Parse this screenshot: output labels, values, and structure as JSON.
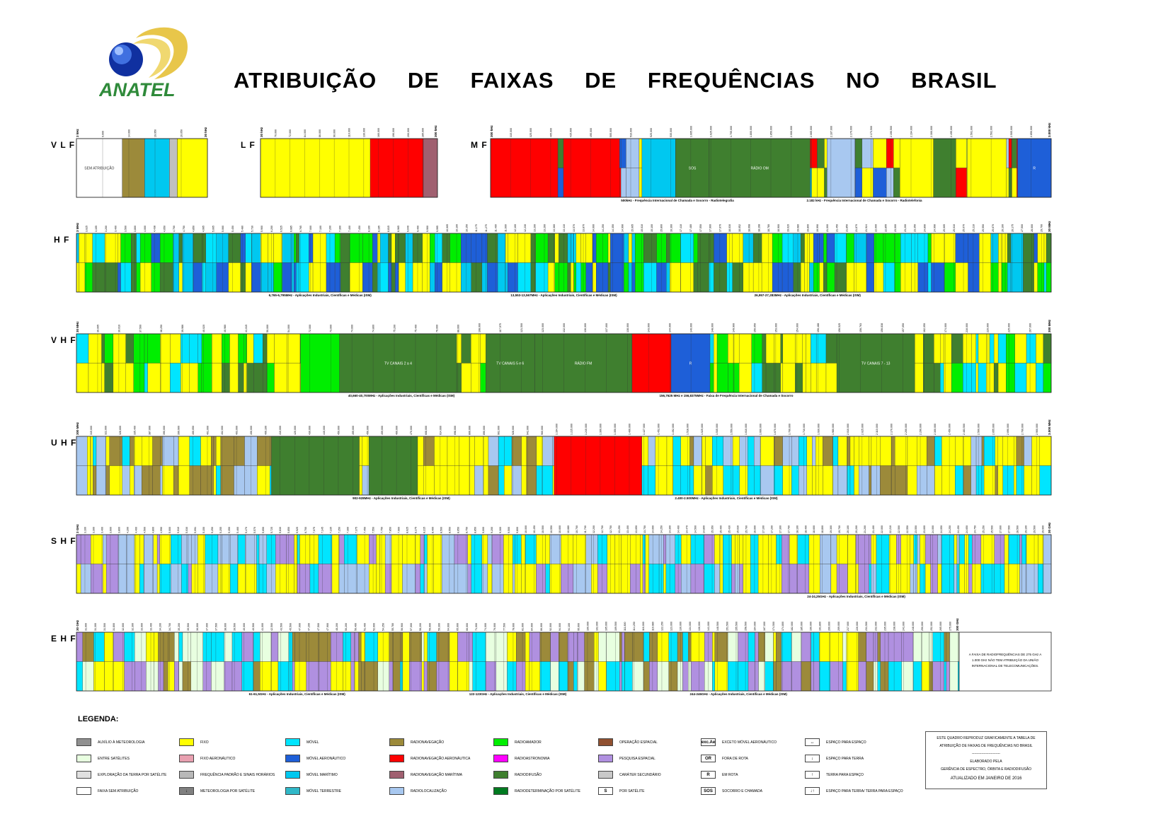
{
  "header": {
    "title": "ATRIBUIÇÃO DE FAIXAS DE FREQUÊNCIAS NO BRASIL",
    "logo_text": "ANATEL"
  },
  "colors": {
    "fixo": "#FFFF00",
    "movel": "#00E5FF",
    "movel_aeronautico": "#1E5FD8",
    "movel_maritimo": "#00C8F0",
    "radiodifusao": "#3F7F2F",
    "radiolocalizacao": "#A8C8F0",
    "radionavegacao": "#9C8A3A",
    "radionavegacao_aeronautica": "#FF0000",
    "radioamador": "#00EE00",
    "radioastronomia": "#FF00FF",
    "pesquisa_espacial": "#B090E0",
    "entre_satelites": "#E8FFE0",
    "fixo_aeronautico": "#E8A0B0",
    "radionav_maritima": "#A06070",
    "operacao_espacial": "#905030",
    "aux_meteorologia": "#909090",
    "caracter_secundario": "#C0C0C0",
    "terra_pale": "#FFFF99"
  },
  "chart_data": {
    "type": "frequency-allocation-chart",
    "bands": [
      {
        "name": "V L F",
        "start_label": "3 kHz",
        "end_label": "30 kHz",
        "tick_labels": [
          "9,000",
          "14,000",
          "19,950",
          "20,050"
        ],
        "notes": [],
        "block_labels": [
          "SEM ATRIBUIÇÃO"
        ]
      },
      {
        "name": "L F",
        "start_label": "30 kHz",
        "end_label": "300 kHz",
        "tick_labels": [
          "70,000",
          "72,000",
          "84,000",
          "86,000",
          "90,000",
          "110,000",
          "130,000",
          "160,000",
          "190,000",
          "200,000",
          "285,000"
        ],
        "notes": [],
        "block_labels": [
          "Radio Baci"
        ]
      },
      {
        "name": "M F",
        "start_label": "300 kHz",
        "end_label": "3.000 kHz",
        "tick_labels": [
          "315,000",
          "325,000",
          "405,000",
          "415,000",
          "495,000",
          "505,000",
          "510,000",
          "525,000",
          "535,000",
          "1.605,000",
          "1.625,000",
          "1.705,000",
          "1.800,000",
          "1.850,000",
          "2.000,000",
          "2.065,000",
          "2.107,000",
          "2.170,000",
          "2.173,500",
          "2.190,500",
          "2.194,000",
          "2.300,000",
          "2.495,000",
          "2.501,000",
          "2.502,000",
          "2.505,000",
          "2.850,000"
        ],
        "notes": [
          "500kHz - Frequência Internacional de Chamada e Socorro - Radiotelegrafia",
          "2.182 kHz - Frequência Internacional de Chamada e Socorro - Radiotelefonia"
        ],
        "block_labels": [
          "Radiolocal",
          "SOS",
          "RÁDIO OM",
          "exc. Ae",
          "R",
          "SOS"
        ]
      },
      {
        "name": "H F",
        "start_label": "3 MHz",
        "end_label": "30 MHz",
        "tick_labels": [
          "3,025",
          "3,155",
          "3,200",
          "3,400",
          "3,500",
          "3,800",
          "4,000",
          "4,438",
          "4,650",
          "4,700",
          "4,750",
          "4,850",
          "4,995",
          "5,005",
          "5,060",
          "5,450",
          "5,480",
          "5,730",
          "5,900",
          "6,200",
          "6,525",
          "6,685",
          "6,765",
          "7,000",
          "7,100",
          "7,200",
          "7,300",
          "7,400",
          "7,450",
          "8,100",
          "8,195",
          "8,815",
          "8,965",
          "9,040",
          "9,400",
          "9,900",
          "9,995",
          "10,005",
          "10,100",
          "10,150",
          "11,175",
          "11,275",
          "11,400",
          "11,600",
          "12,100",
          "12,230",
          "13,200",
          "13,260",
          "13,360",
          "13,410",
          "13,570",
          "13,870",
          "14,000",
          "14,250",
          "14,350",
          "14,990",
          "15,005",
          "15,010",
          "15,100",
          "15,800",
          "16,360",
          "17,410",
          "17,480",
          "17,550",
          "17,900",
          "17,970",
          "18,030",
          "18,052",
          "18,068",
          "18,168",
          "18,780",
          "18,900",
          "19,020",
          "19,680",
          "19,800",
          "19,990",
          "21,000",
          "21,450",
          "21,850",
          "21,870",
          "21,924",
          "22,000",
          "22,855",
          "23,000",
          "23,200",
          "23,350",
          "24,890",
          "24,990",
          "25,005",
          "25,010",
          "25,070",
          "25,210",
          "25,550",
          "25,670",
          "26,100",
          "26,175",
          "27,500",
          "28,000",
          "29,700"
        ],
        "notes": [
          "6,765-6,795MHz - Aplicações Industriais, Científicas e Médicas (ISM)",
          "13,553-13,567MHz - Aplicações Industriais, Científicas e Médicas (ISM)",
          "26,957-27,283MHz - Aplicações Industriais, Científicas e Médicas (ISM)"
        ],
        "block_labels": [
          "R",
          "OR",
          "exc.Ae R",
          "R",
          "exc.Ae. R",
          "exc.Ae R",
          "R",
          "OR",
          "R",
          "OR",
          "R",
          "OR",
          "exc.Ae",
          "exc.Ae",
          "exc.Ae",
          "R",
          "OR",
          "exc.Ae",
          "R",
          "OR",
          "Exc.Ae",
          "Exc.Ae",
          "R",
          "OR"
        ]
      },
      {
        "name": "V H F",
        "start_label": "30 MHz",
        "end_label": "300 MHz",
        "tick_labels": [
          "30,005",
          "30,010",
          "37,500",
          "38,250",
          "39,986",
          "40,020",
          "40,980",
          "41,015",
          "50,000",
          "54,000",
          "72,000",
          "73,000",
          "74,600",
          "74,800",
          "75,200",
          "75,400",
          "76,000",
          "88,000",
          "108,000",
          "117,975",
          "121,500",
          "123,000",
          "132,000",
          "136,000",
          "137,000",
          "138,000",
          "143,600",
          "144,000",
          "146,000",
          "148,000",
          "149,900",
          "150,050",
          "153,000",
          "154,000",
          "156,488",
          "156,525",
          "156,763",
          "156,838",
          "157,050",
          "162,050",
          "174,000",
          "216,000",
          "220,000",
          "225,000",
          "267,000"
        ],
        "notes": [
          "40,660-40,700MHz - Aplicações Industriais, Científicas e Médicas (ISM)",
          "156,7625 MHz e 156,8375MHz - Faixa de Frequência Internacional de Chamada e Socorro"
        ],
        "block_labels": [
          "TV CANAIS 2 a 4",
          "TV CANAIS 5 e 6",
          "RÁDIO FM",
          "R",
          "TV CANAIS 7 - 13"
        ]
      },
      {
        "name": "U H F",
        "start_label": "300 MHz",
        "end_label": "3.000 MHz",
        "tick_labels": [
          "315,000",
          "322,000",
          "328,600",
          "335,400",
          "387,000",
          "390,000",
          "399,900",
          "400,050",
          "401,000",
          "402,000",
          "403,000",
          "406,000",
          "406,100",
          "410,000",
          "420,000",
          "430,000",
          "440,000",
          "450,000",
          "455,000",
          "456,000",
          "459,000",
          "460,000",
          "470,000",
          "608,000",
          "614,000",
          "698,000",
          "806,000",
          "890,000",
          "902,000",
          "928,000",
          "942,000",
          "960,000",
          "1.164,000",
          "1.215,000",
          "1.240,000",
          "1.300,000",
          "1.350,000",
          "1.400,000",
          "1.427,000",
          "1.452,000",
          "1.492,000",
          "1.518,000",
          "1.525,000",
          "1.535,000",
          "1.559,000",
          "1.610,000",
          "1.660,000",
          "1.670,000",
          "1.700,000",
          "1.710,000",
          "1.930,000",
          "1.980,000",
          "2.010,000",
          "2.025,000",
          "2.110,000",
          "2.170,000",
          "2.200,000",
          "2.290,000",
          "2.300,000",
          "2.450,000",
          "2.483,500",
          "2.500,000",
          "2.655,000",
          "2.690,000",
          "2.700,000",
          "2.900,000"
        ],
        "notes": [
          "902-928MHz - Aplicações Industriais, Científicas e Médicas (ISM)",
          "2.400-2.500MHz - Aplicações Industriais, Científicas e Médicas (ISM)"
        ],
        "block_labels": [
          "TV CANAIS 14 a 36",
          "TV CANAIS 38 a 51"
        ]
      },
      {
        "name": "S H F",
        "start_label": "3 GHz",
        "end_label": "30 GHz",
        "tick_labels": [
          "3,100",
          "3,300",
          "3,400",
          "3,600",
          "3,800",
          "4,200",
          "4,400",
          "4,500",
          "4,800",
          "4,990",
          "5,000",
          "5,010",
          "5,030",
          "5,091",
          "5,150",
          "5,250",
          "5,255",
          "5,350",
          "5,460",
          "5,470",
          "5,570",
          "5,650",
          "5,725",
          "5,830",
          "5,850",
          "5,925",
          "6,700",
          "7,075",
          "7,145",
          "7,235",
          "7,250",
          "7,300",
          "7,375",
          "7,450",
          "7,550",
          "7,750",
          "7,850",
          "7,900",
          "8,025",
          "8,175",
          "8,215",
          "8,400",
          "8,500",
          "8,550",
          "8,650",
          "8,750",
          "8,850",
          "9,000",
          "9,200",
          "9,300",
          "9,500",
          "9,800",
          "10,000",
          "10,450",
          "10,500",
          "10,550",
          "10,600",
          "10,680",
          "10,700",
          "11,700",
          "12,200",
          "12,700",
          "12,750",
          "13,250",
          "13,400",
          "13,650",
          "13,750",
          "14,000",
          "14,250",
          "14,300",
          "14,400",
          "14,470",
          "14,500",
          "14,800",
          "15,350",
          "15,400",
          "15,430",
          "15,630",
          "15,700",
          "16,600",
          "17,100",
          "17,200",
          "17,300",
          "17,700",
          "18,100",
          "18,400",
          "18,600",
          "18,800",
          "19,300",
          "19,700",
          "20,100",
          "20,200",
          "21,200",
          "21,400",
          "22,000",
          "22,210",
          "22,500",
          "22,550",
          "23,550",
          "23,600",
          "24,000",
          "24,050",
          "24,250",
          "24,450",
          "24,650",
          "24,750",
          "25,250",
          "25,500",
          "27,000",
          "27,500",
          "28,500",
          "29,100",
          "29,500",
          "29,900"
        ],
        "notes": [
          "24-24,25GHz - Aplicações Industriais, Científicas e Médicas (ISM)"
        ],
        "block_labels": []
      },
      {
        "name": "E H F",
        "start_label": "30 GHz",
        "end_label": "300 GHz",
        "tick_labels": [
          "31,000",
          "31,300",
          "31,500",
          "31,800",
          "32,000",
          "32,300",
          "33,000",
          "33,400",
          "34,200",
          "34,700",
          "35,200",
          "35,500",
          "36,000",
          "37,000",
          "37,500",
          "38,000",
          "39,500",
          "40,000",
          "40,500",
          "41,000",
          "42,500",
          "43,500",
          "45,500",
          "47,000",
          "47,200",
          "47,500",
          "47,900",
          "48,200",
          "50,200",
          "50,400",
          "51,400",
          "52,600",
          "54,250",
          "55,780",
          "56,900",
          "57,000",
          "58,200",
          "59,000",
          "59,300",
          "64,000",
          "65,000",
          "66,000",
          "71,000",
          "74,000",
          "76,000",
          "77,500",
          "78,000",
          "81,000",
          "84,000",
          "86,000",
          "92,000",
          "94,000",
          "94,100",
          "95,000",
          "100,000",
          "102,000",
          "105,000",
          "109,500",
          "111,800",
          "114,250",
          "116,000",
          "119,980",
          "122,250",
          "123,000",
          "130,000",
          "134,000",
          "136,000",
          "141,000",
          "148,500",
          "151,500",
          "155,500",
          "158,500",
          "164,000",
          "167,000",
          "174,500",
          "174,800",
          "182,000",
          "185,000",
          "190,000",
          "191,800",
          "200,000",
          "209,000",
          "217,000",
          "226,000",
          "231,500",
          "232,000",
          "235,000",
          "238,000",
          "241,000",
          "248,000",
          "250,000",
          "252,000",
          "265,000",
          "275,000"
        ],
        "notes": [
          "61-61,5GHz - Aplicações Industriais, Científicas e Médicas (ISM)",
          "122-123GHz - Aplicações Industriais, Científicas e Médicas (ISM)",
          "244-246GHz - Aplicações Industriais, Científicas e Médicas (ISM)"
        ],
        "block_labels": [
          "A FAIXA DE RADIOFREQUÊNCIAS DE 275 GHz A 1.000 GHz NÃO TEM ATRIBUIÇÃO DA UNIÃO INTERNACIONAL DE TELECOMUNICAÇÕES."
        ]
      }
    ]
  },
  "legend": {
    "title": "LEGENDA:",
    "items": [
      {
        "label": "AUXÍLIO À METEOROLOGIA",
        "color": "#909090",
        "symbol": ""
      },
      {
        "label": "ENTRE SATÉLITES",
        "color": "#E8FFE0",
        "symbol": ""
      },
      {
        "label": "EXPLORAÇÃO DA TERRA POR SATÉLITE",
        "color": "#E0E0E0",
        "symbol": ""
      },
      {
        "label": "FAIXA SEM ATRIBUIÇÃO",
        "color": "#FFFFFF",
        "symbol": ""
      },
      {
        "label": "FIXO",
        "color": "#FFFF00",
        "symbol": ""
      },
      {
        "label": "FIXO AERONÁUTICO",
        "color": "#E8A0B0",
        "symbol": ""
      },
      {
        "label": "FREQUÊNCIA PADRÃO E SINAIS HORÁRIOS",
        "color": "#B8B8B8",
        "symbol": ""
      },
      {
        "label": "METEOROLOGIA POR SATÉLITE",
        "color": "#808080",
        "symbol": "↓"
      },
      {
        "label": "MÓVEL",
        "color": "#00E5FF",
        "symbol": ""
      },
      {
        "label": "MÓVEL AERONÁUTICO",
        "color": "#1E5FD8",
        "symbol": ""
      },
      {
        "label": "MÓVEL MARÍTIMO",
        "color": "#00C8F0",
        "symbol": ""
      },
      {
        "label": "MÓVEL TERRESTRE",
        "color": "#30B8C8",
        "symbol": ""
      },
      {
        "label": "RADIONAVEGAÇÃO",
        "color": "#9C8A3A",
        "symbol": ""
      },
      {
        "label": "RADIONAVEGAÇÃO AERONÁUTICA",
        "color": "#FF0000",
        "symbol": ""
      },
      {
        "label": "RADIONAVEGAÇÃO MARÍTIMA",
        "color": "#A06070",
        "symbol": ""
      },
      {
        "label": "RADIOLOCALIZAÇÃO",
        "color": "#A8C8F0",
        "symbol": ""
      },
      {
        "label": "RADIOAMADOR",
        "color": "#00EE00",
        "symbol": ""
      },
      {
        "label": "RADIOASTRONOMIA",
        "color": "#FF00FF",
        "symbol": ""
      },
      {
        "label": "RADIODIFUSÃO",
        "color": "#3F7F2F",
        "symbol": ""
      },
      {
        "label": "RADIODETERMINAÇÃO POR SATÉLITE",
        "color": "#007A20",
        "symbol": ""
      },
      {
        "label": "OPERAÇÃO ESPACIAL",
        "color": "#905030",
        "symbol": ""
      },
      {
        "label": "PESQUISA ESPACIAL",
        "color": "#B090E0",
        "symbol": ""
      },
      {
        "label": "CARÁTER SECUNDÁRIO",
        "color": "#C8C8C8",
        "symbol": ""
      },
      {
        "label": "POR SATÉLITE",
        "color": "#FFFFFF",
        "symbol": "S"
      },
      {
        "label": "EXCETO MÓVEL AERONÁUTICO",
        "color": "#FFFFFF",
        "symbol": "exc.Ae"
      },
      {
        "label": "FORA DE ROTA",
        "color": "#FFFFFF",
        "symbol": "OR"
      },
      {
        "label": "EM ROTA",
        "color": "#FFFFFF",
        "symbol": "R"
      },
      {
        "label": "SOCORRO E CHAMADA",
        "color": "#FFFFFF",
        "symbol": "SOS"
      },
      {
        "label": "ESPAÇO PARA ESPAÇO",
        "color": "#FFFFFF",
        "symbol": "↔"
      },
      {
        "label": "ESPAÇO PARA TERRA",
        "color": "#FFFFFF",
        "symbol": "↓"
      },
      {
        "label": "TERRA PARA ESPAÇO",
        "color": "#FFFFFF",
        "symbol": "↑"
      },
      {
        "label": "ESPAÇO PARA TERRA/ TERRA PARA ESPAÇO",
        "color": "#FFFFFF",
        "symbol": "↓↑"
      }
    ]
  },
  "note_box": {
    "line1": "ESTE QUADRO REPRODUZ GRAFICAMENTE A TABELA DE",
    "line2": "ATRIBUIÇÃO DE FAIXAS DE FREQUÊNCIAS NO BRASIL",
    "line3": "ELABORADO PELA",
    "line4": "GERÊNCIA DE ESPECTRO, ÓRBITA E RADIODIFUSÃO",
    "updated": "ATUALIZADO EM JANEIRO DE 2016"
  }
}
